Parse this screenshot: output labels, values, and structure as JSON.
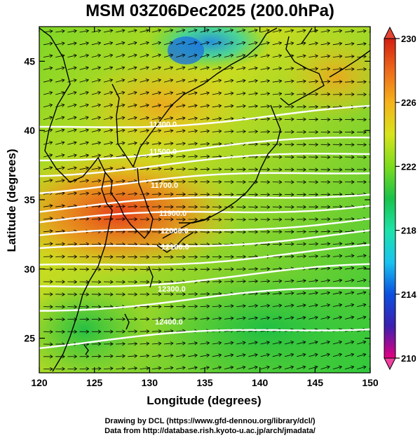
{
  "title": "MSM 03Z06Dec2025 (200.0hPa)",
  "x_axis": {
    "label": "Longitude (degrees)",
    "ticks": [
      120,
      125,
      130,
      135,
      140,
      145,
      150
    ],
    "range": [
      120,
      150
    ]
  },
  "y_axis": {
    "label": "Latitude  (degrees)",
    "ticks": [
      25,
      30,
      35,
      40,
      45
    ],
    "range": [
      22.5,
      47.5
    ]
  },
  "colorbar": {
    "min": 210,
    "max": 230,
    "tick_labels": [
      "230",
      "226",
      "222",
      "218",
      "214",
      "210"
    ],
    "colors": [
      "#e60080",
      "#3b1fb0",
      "#0b4fe0",
      "#19c3f0",
      "#1de3a8",
      "#19c24a",
      "#7ddc1e",
      "#d7e41c",
      "#f6b21b",
      "#ee6a1a",
      "#d41e12"
    ]
  },
  "contours": {
    "color": "#ffffff",
    "labels": [
      "11300.0",
      "11500.0",
      "11700.0",
      "11900.0",
      "12000.0",
      "12100.0",
      "12300.0",
      "12400.0"
    ]
  },
  "colors": {
    "land": "#000000",
    "vector": "#000000"
  },
  "credits": [
    "Drawing by DCL (https://www.gfd-dennou.org/library/dcl/)",
    "Data from http://database.rish.kyoto-u.ac.jp/arch/jmadata/"
  ]
}
